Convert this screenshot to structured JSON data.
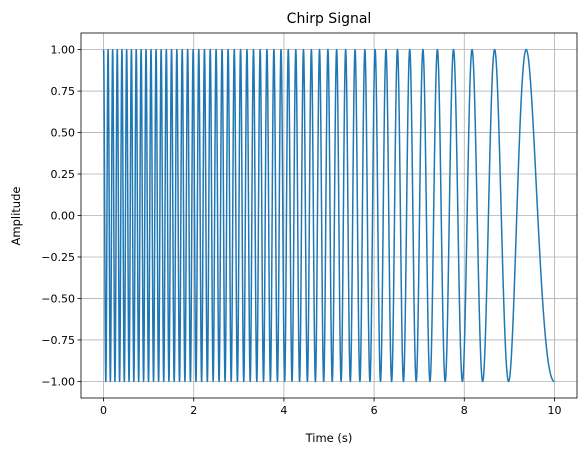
{
  "chart_data": {
    "type": "line",
    "title": "Chirp Signal",
    "xlabel": "Time (s)",
    "ylabel": "Amplitude",
    "xlim": [
      -0.5,
      10.5
    ],
    "ylim": [
      -1.1,
      1.1
    ],
    "grid": true,
    "x_ticks": [
      0,
      2,
      4,
      6,
      8,
      10
    ],
    "x_tick_labels": [
      "0",
      "2",
      "4",
      "6",
      "8",
      "10"
    ],
    "y_ticks": [
      -1.0,
      -0.75,
      -0.5,
      -0.25,
      0.0,
      0.25,
      0.5,
      0.75,
      1.0
    ],
    "y_tick_labels": [
      "−1.00",
      "−0.75",
      "−0.50",
      "−0.25",
      "0.00",
      "0.25",
      "0.50",
      "0.75",
      "1.00"
    ],
    "series": [
      {
        "color": "#1f77b4",
        "function": "cos",
        "t_start": 0,
        "t_end": 10,
        "f_start_hz": 10,
        "f_end_hz": 0.5,
        "method": "linear"
      }
    ]
  }
}
